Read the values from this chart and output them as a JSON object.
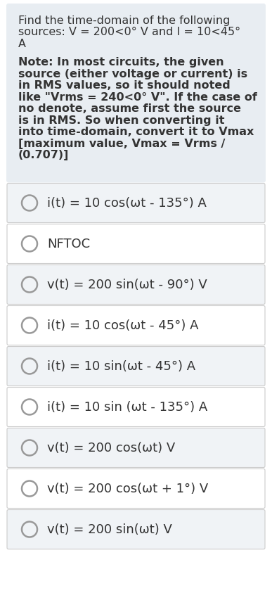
{
  "background_color": "#ffffff",
  "question_bg_color": "#e8edf2",
  "option_bg_even": "#f0f3f6",
  "option_bg_odd": "#ffffff",
  "question_lines": [
    "Find the time-domain of the following",
    "sources: V = 200<0° V and I = 10<45°",
    "A"
  ],
  "note_lines": [
    "Note: In most circuits, the given",
    "source (either voltage or current) is",
    "in RMS values, so it should noted",
    "like \"Vrms = 240<0° V\". If the case of",
    "no denote, assume first the source",
    "is in RMS. So when converting it",
    "into time-domain, convert it to Vmax",
    "[maximum value, Vmax = Vrms /",
    "(0.707)]"
  ],
  "options": [
    "i(t) = 10 cos(ωt - 135°) A",
    "NFTOC",
    "v(t) = 200 sin(ωt - 90°) V",
    "i(t) = 10 cos(ωt - 45°) A",
    "i(t) = 10 sin(ωt - 45°) A",
    "i(t) = 10 sin (ωt - 135°) A",
    "v(t) = 200 cos(ωt) V",
    "v(t) = 200 cos(ωt + 1°) V",
    "v(t) = 200 sin(ωt) V"
  ],
  "circle_color": "#999999",
  "text_color": "#333333",
  "border_color": "#cccccc",
  "q_font_size": 11.5,
  "note_font_size": 11.5,
  "option_font_size": 13.0
}
